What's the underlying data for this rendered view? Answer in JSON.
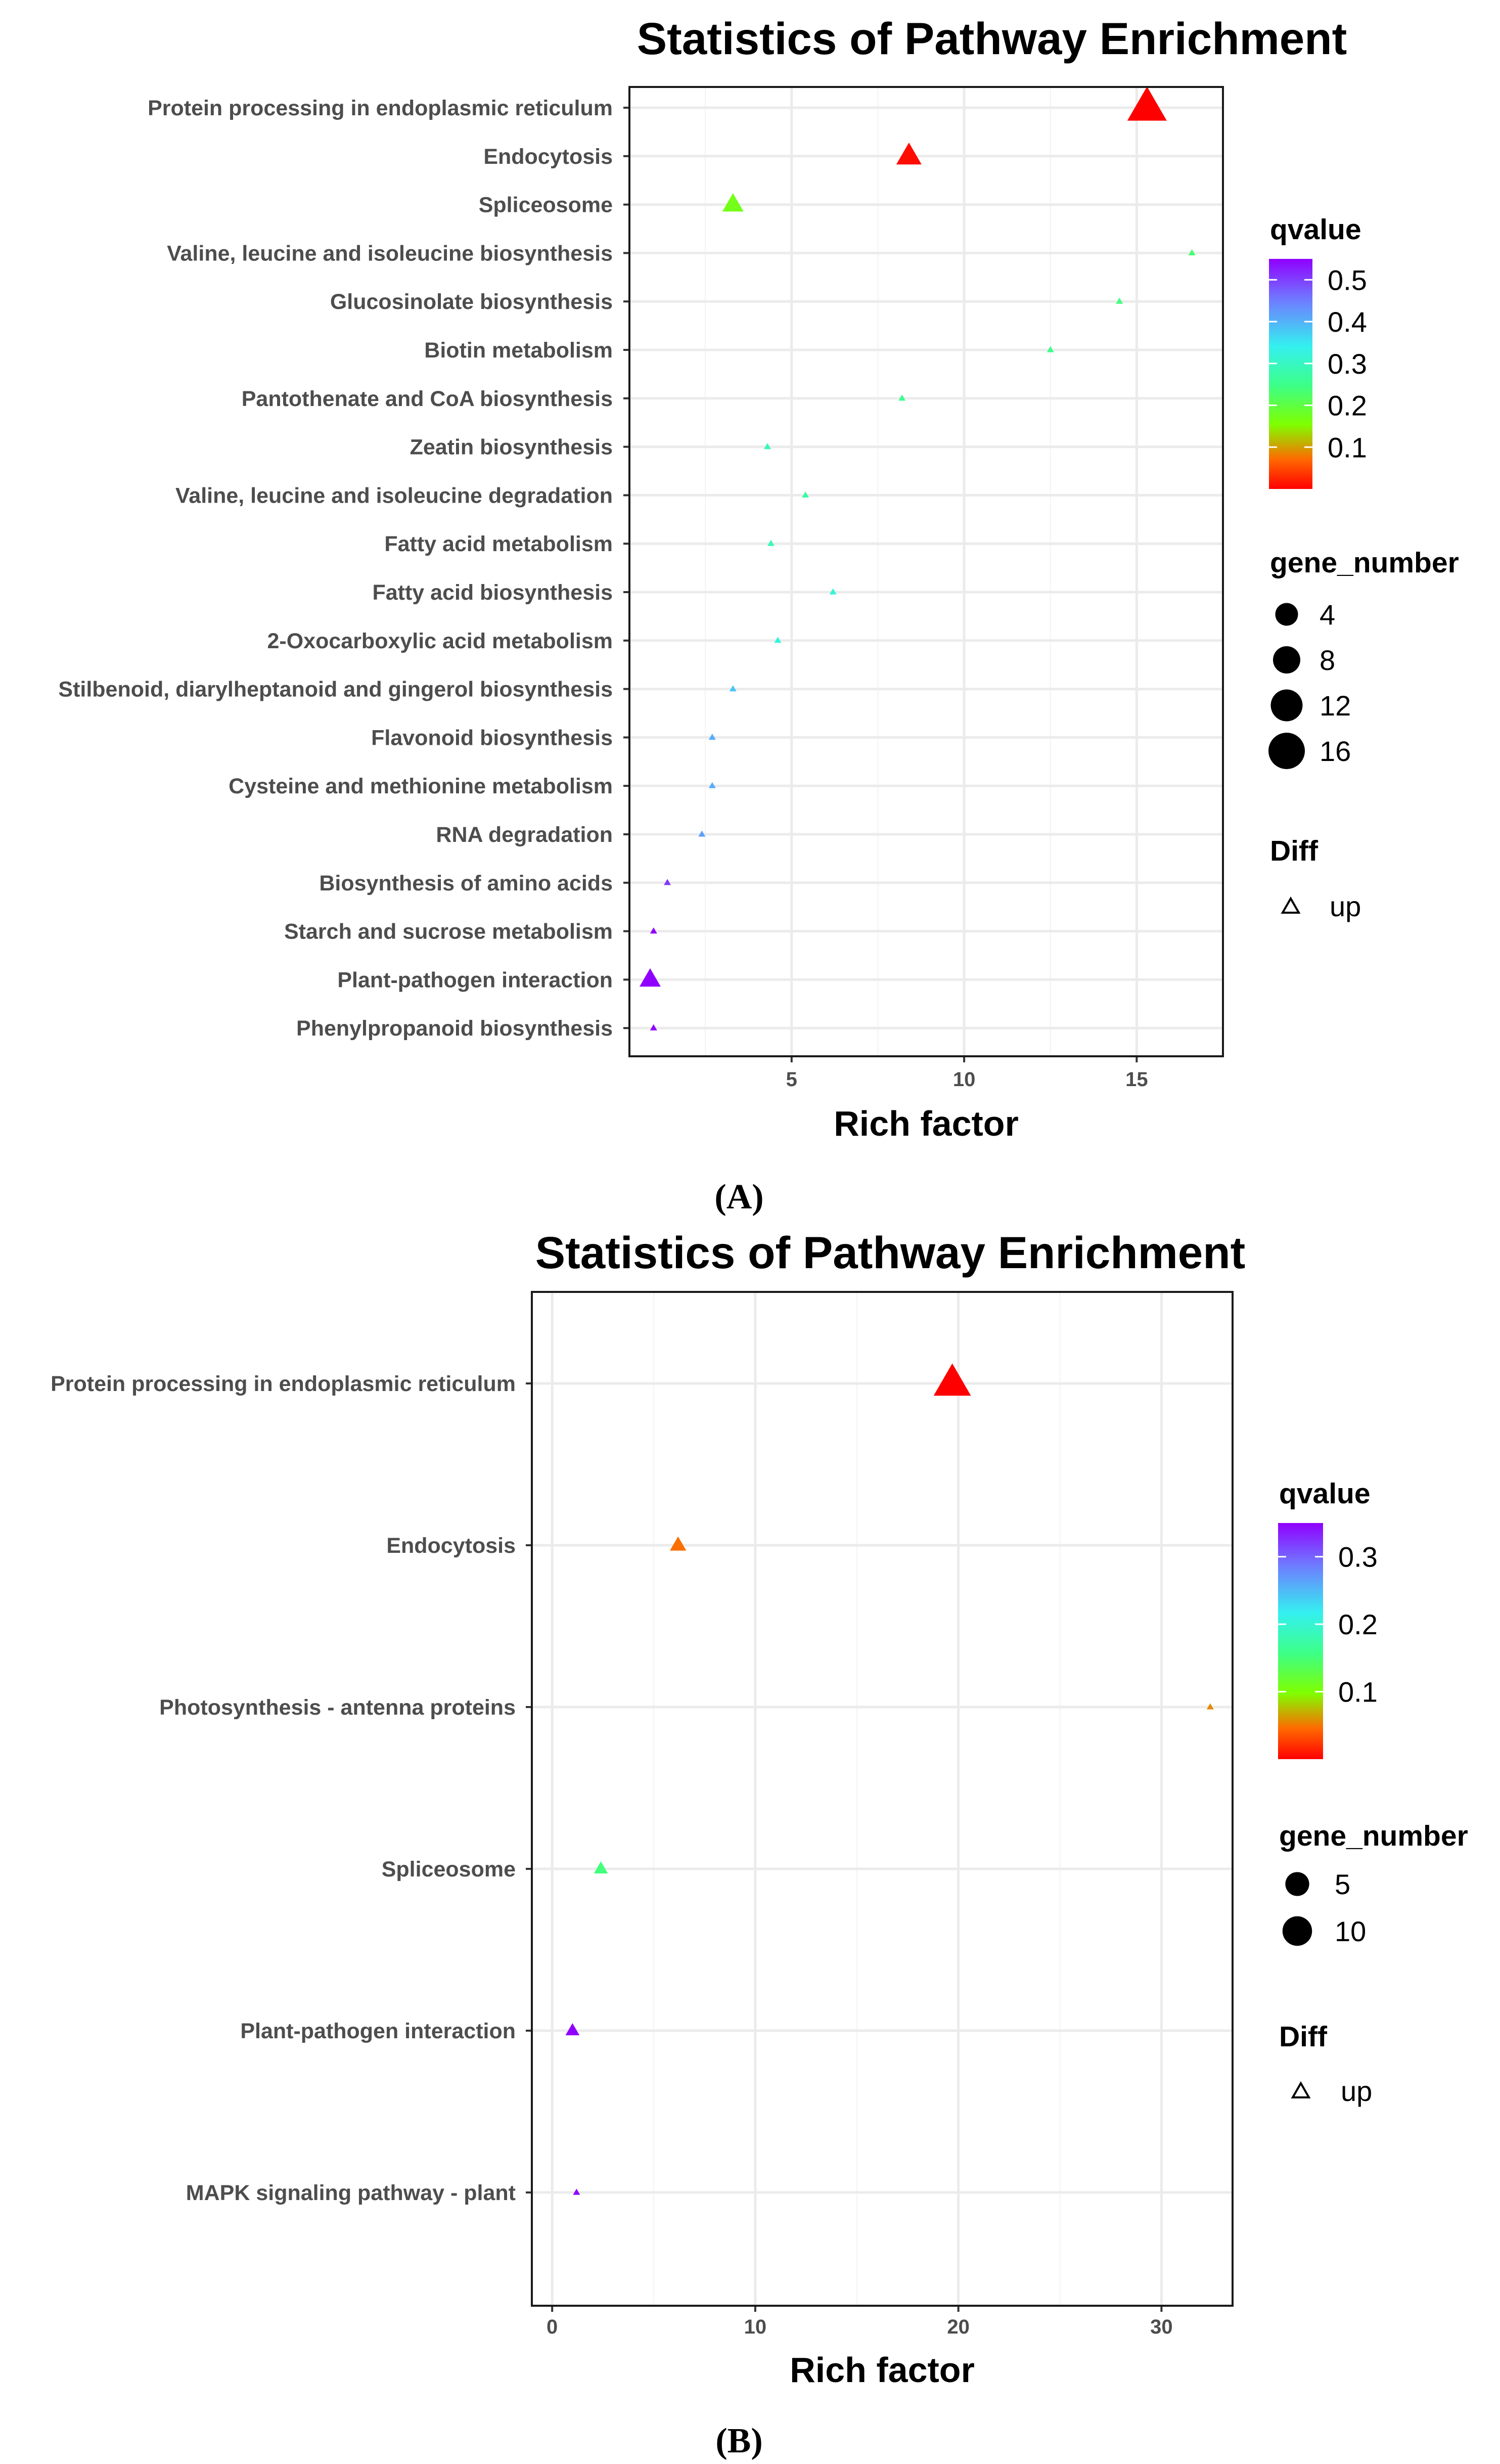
{
  "chart_data": [
    {
      "type": "scatter",
      "panel_label": "(A)",
      "title": "Statistics of Pathway Enrichment",
      "xlabel": "Rich factor",
      "xlim": [
        0.3,
        17.5
      ],
      "xticks": [
        5,
        10,
        15
      ],
      "grid": true,
      "marker": "triangle",
      "categories": [
        "Protein processing in endoplasmic reticulum",
        "Endocytosis",
        "Spliceosome",
        "Valine, leucine and isoleucine biosynthesis",
        "Glucosinolate biosynthesis",
        "Biotin metabolism",
        "Pantothenate and CoA biosynthesis",
        "Zeatin biosynthesis",
        "Valine, leucine and isoleucine degradation",
        "Fatty acid metabolism",
        "Fatty acid biosynthesis",
        "2-Oxocarboxylic acid metabolism",
        "Stilbenoid, diarylheptanoid and gingerol biosynthesis",
        "Flavonoid biosynthesis",
        "Cysteine and methionine metabolism",
        "RNA degradation",
        "Biosynthesis of amino acids",
        "Starch and sucrose metabolism",
        "Plant-pathogen interaction",
        "Phenylpropanoid biosynthesis"
      ],
      "rich_factor": [
        15.3,
        8.4,
        3.3,
        16.6,
        14.5,
        12.5,
        8.2,
        4.3,
        5.4,
        4.4,
        6.2,
        4.6,
        3.3,
        2.7,
        2.7,
        2.4,
        1.4,
        1.0,
        0.9,
        1.0
      ],
      "qvalue": [
        0.0,
        0.01,
        0.2,
        0.26,
        0.27,
        0.28,
        0.28,
        0.31,
        0.3,
        0.32,
        0.34,
        0.35,
        0.4,
        0.42,
        0.42,
        0.43,
        0.51,
        0.55,
        0.55,
        0.55
      ],
      "gene_number": [
        17,
        10,
        8,
        1,
        1,
        1,
        1,
        1,
        1,
        1,
        1,
        1,
        1,
        1,
        1,
        1,
        1,
        1,
        8,
        1
      ],
      "diff": "up",
      "legend": {
        "color_title": "qvalue",
        "color_ticks": [
          "0.5",
          "0.4",
          "0.3",
          "0.2",
          "0.1"
        ],
        "color_range": [
          0.0,
          0.55
        ],
        "size_title": "gene_number",
        "size_ticks": [
          "4",
          "8",
          "12",
          "16"
        ],
        "shape_title": "Diff",
        "shape_label": "up"
      }
    },
    {
      "type": "scatter",
      "panel_label": "(B)",
      "title": "Statistics of Pathway Enrichment",
      "xlabel": "Rich factor",
      "xlim": [
        -1.0,
        33.5
      ],
      "xticks": [
        0,
        10,
        20,
        30
      ],
      "grid": true,
      "marker": "triangle",
      "categories": [
        "Protein processing in endoplasmic reticulum",
        "Endocytosis",
        "Photosynthesis - antenna proteins",
        "Spliceosome",
        "Plant-pathogen interaction",
        "MAPK signaling pathway - plant"
      ],
      "rich_factor": [
        19.7,
        6.2,
        32.4,
        2.4,
        1.0,
        1.2
      ],
      "qvalue": [
        0.0,
        0.06,
        0.07,
        0.17,
        0.35,
        0.35
      ],
      "gene_number": [
        14,
        5,
        1,
        4,
        4,
        1
      ],
      "diff": "up",
      "legend": {
        "color_title": "qvalue",
        "color_ticks": [
          "0.3",
          "0.2",
          "0.1"
        ],
        "color_range": [
          0.0,
          0.35
        ],
        "size_title": "gene_number",
        "size_ticks": [
          "5",
          "10"
        ],
        "shape_title": "Diff",
        "shape_label": "up"
      }
    }
  ],
  "colors": {
    "scale": [
      "#ff0000",
      "#ff6a00",
      "#7fff00",
      "#3cff88",
      "#34f0f0",
      "#6f7cff",
      "#9000ff"
    ],
    "grid": "#ebebeb",
    "panel_border": "#1a1a1a",
    "text": "#4d4d4d"
  }
}
